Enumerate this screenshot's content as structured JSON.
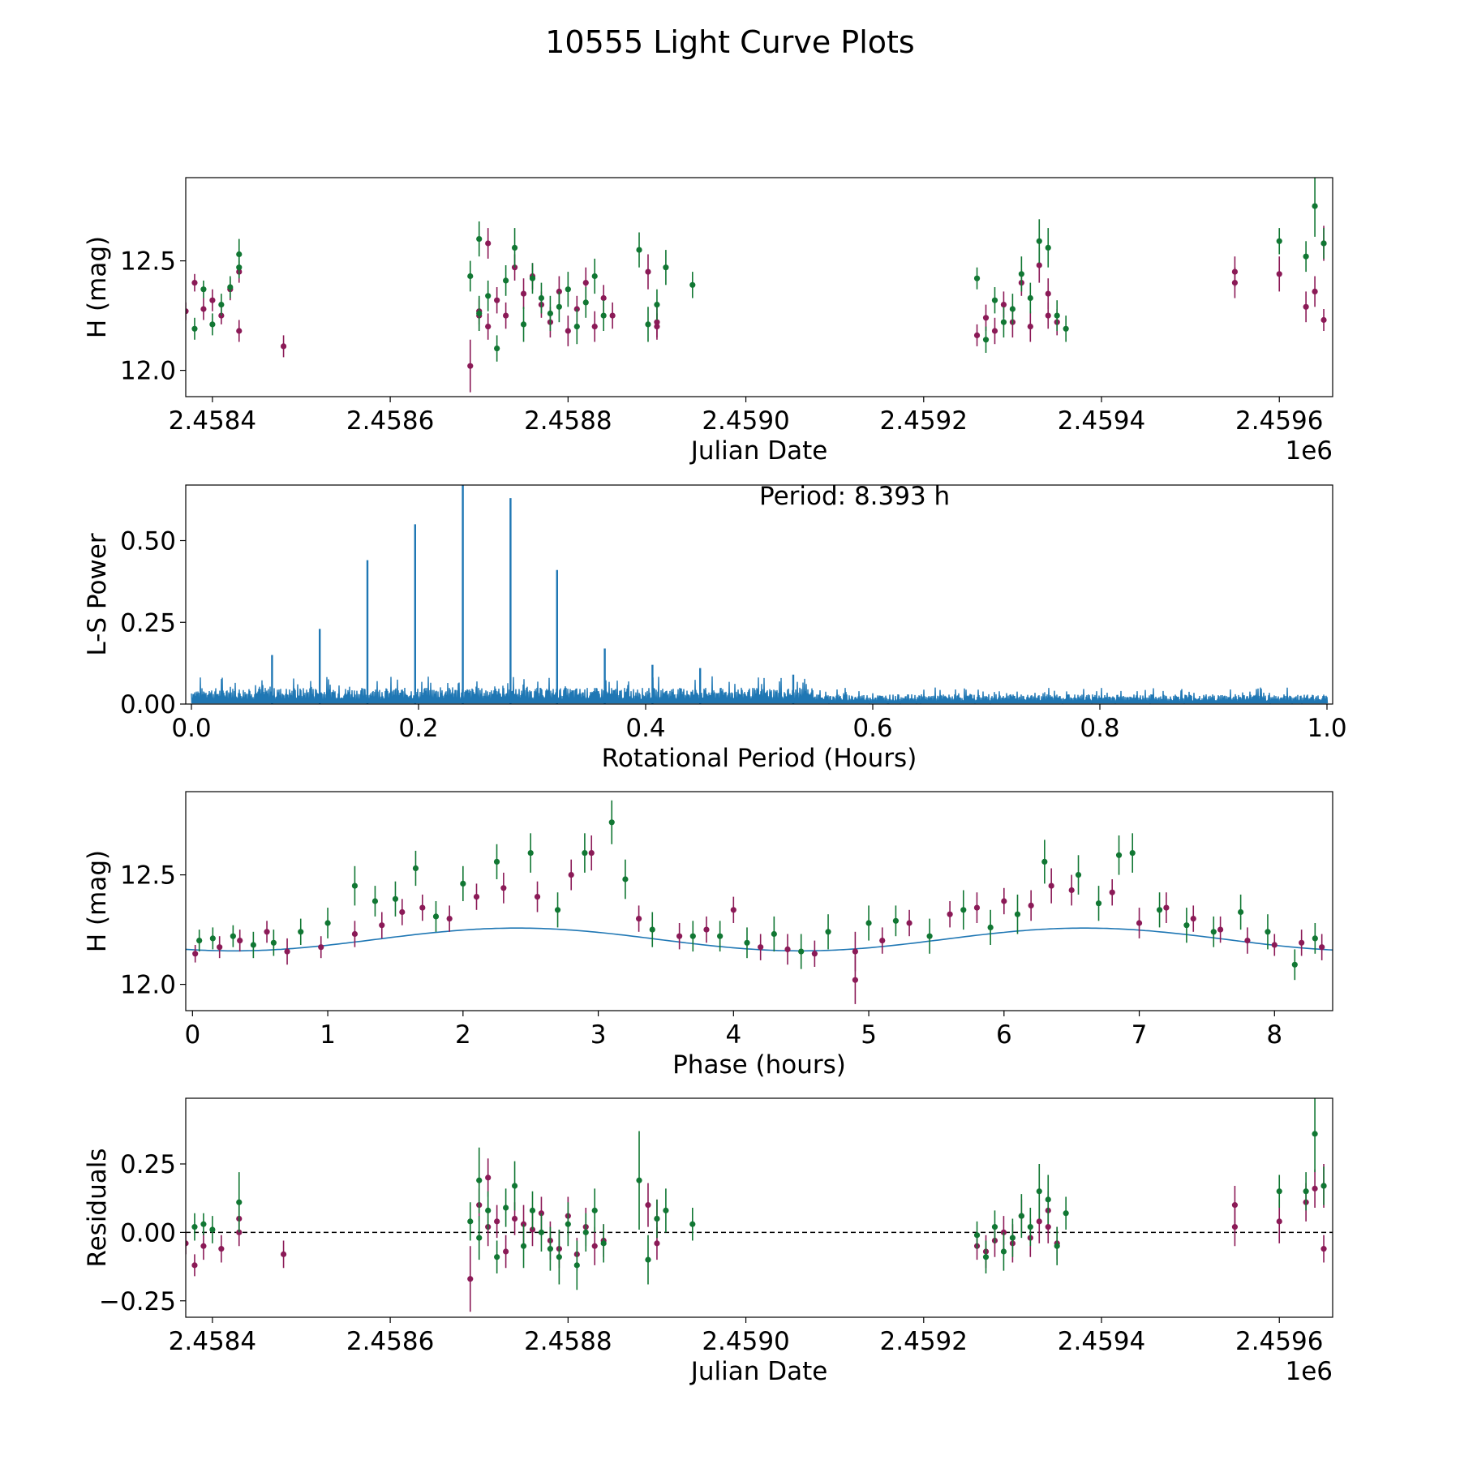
{
  "figure": {
    "title": "10555 Light Curve Plots"
  },
  "colors": {
    "band_a": "#8b1a57",
    "band_b": "#117733",
    "line": "#1f77b4",
    "axis": "#000000"
  },
  "chart_data": [
    {
      "id": "p1",
      "type": "scatter",
      "title": "",
      "xlabel": "Julian Date",
      "ylabel": "H (mag)",
      "x_offset_label": "1e6",
      "xlim": [
        2.45837,
        2.45966
      ],
      "ylim": [
        11.88,
        12.88
      ],
      "xticks": [
        2.4584,
        2.4586,
        2.4588,
        2.459,
        2.4592,
        2.4594,
        2.4596
      ],
      "xticklabels": [
        "2.4584",
        "2.4586",
        "2.4588",
        "2.4590",
        "2.4592",
        "2.4594",
        "2.4596"
      ],
      "yticks": [
        12.0,
        12.5
      ],
      "yticklabels": [
        "12.0",
        "12.5"
      ],
      "series": [
        {
          "name": "band_a",
          "color": "#8b1a57",
          "x": [
            2.45837,
            2.45838,
            2.45839,
            2.4584,
            2.45841,
            2.45842,
            2.45843,
            2.45843,
            2.45848,
            2.45869,
            2.4587,
            2.4587,
            2.45871,
            2.45871,
            2.45872,
            2.45873,
            2.45874,
            2.45875,
            2.45876,
            2.45877,
            2.45878,
            2.45879,
            2.4588,
            2.45881,
            2.45882,
            2.45883,
            2.45884,
            2.45885,
            2.45889,
            2.4589,
            2.4589,
            2.45926,
            2.45927,
            2.45928,
            2.45929,
            2.4593,
            2.45931,
            2.45932,
            2.45933,
            2.45934,
            2.45934,
            2.45935,
            2.45955,
            2.45955,
            2.4596,
            2.45963,
            2.45964,
            2.45965,
            2.45965
          ],
          "y": [
            12.27,
            12.4,
            12.28,
            12.32,
            12.25,
            12.37,
            12.45,
            12.18,
            12.11,
            12.02,
            12.27,
            12.25,
            12.58,
            12.2,
            12.32,
            12.25,
            12.47,
            12.35,
            12.43,
            12.3,
            12.22,
            12.36,
            12.18,
            12.28,
            12.4,
            12.2,
            12.33,
            12.25,
            12.45,
            12.22,
            12.2,
            12.16,
            12.24,
            12.18,
            12.3,
            12.22,
            12.4,
            12.2,
            12.48,
            12.35,
            12.25,
            12.22,
            12.45,
            12.4,
            12.44,
            12.29,
            12.36,
            12.58,
            12.23
          ],
          "err": [
            0.04,
            0.04,
            0.05,
            0.05,
            0.04,
            0.05,
            0.05,
            0.05,
            0.05,
            0.12,
            0.06,
            0.07,
            0.07,
            0.06,
            0.06,
            0.06,
            0.06,
            0.07,
            0.06,
            0.06,
            0.07,
            0.07,
            0.07,
            0.06,
            0.07,
            0.07,
            0.06,
            0.06,
            0.08,
            0.07,
            0.06,
            0.05,
            0.06,
            0.06,
            0.06,
            0.07,
            0.06,
            0.07,
            0.08,
            0.07,
            0.06,
            0.06,
            0.07,
            0.07,
            0.08,
            0.07,
            0.07,
            0.08,
            0.05
          ]
        },
        {
          "name": "band_b",
          "color": "#117733",
          "x": [
            2.45838,
            2.45839,
            2.4584,
            2.45841,
            2.45842,
            2.45843,
            2.45843,
            2.45869,
            2.4587,
            2.4587,
            2.45871,
            2.45872,
            2.45873,
            2.45874,
            2.45875,
            2.45876,
            2.45877,
            2.45878,
            2.45879,
            2.4588,
            2.45881,
            2.45882,
            2.45883,
            2.45884,
            2.45888,
            2.45889,
            2.4589,
            2.45891,
            2.45894,
            2.45926,
            2.45927,
            2.45928,
            2.45929,
            2.4593,
            2.45931,
            2.45932,
            2.45933,
            2.45934,
            2.45935,
            2.45936,
            2.4596,
            2.45963,
            2.45964,
            2.45965
          ],
          "y": [
            12.19,
            12.37,
            12.21,
            12.3,
            12.38,
            12.53,
            12.47,
            12.43,
            12.26,
            12.6,
            12.34,
            12.1,
            12.41,
            12.56,
            12.21,
            12.42,
            12.33,
            12.26,
            12.29,
            12.37,
            12.2,
            12.31,
            12.43,
            12.25,
            12.55,
            12.21,
            12.3,
            12.47,
            12.39,
            12.42,
            12.14,
            12.32,
            12.22,
            12.28,
            12.44,
            12.33,
            12.59,
            12.56,
            12.25,
            12.19,
            12.59,
            12.52,
            12.75,
            12.58
          ],
          "err": [
            0.05,
            0.04,
            0.05,
            0.05,
            0.05,
            0.07,
            0.05,
            0.07,
            0.08,
            0.08,
            0.07,
            0.06,
            0.07,
            0.09,
            0.08,
            0.07,
            0.07,
            0.08,
            0.07,
            0.08,
            0.08,
            0.07,
            0.08,
            0.07,
            0.08,
            0.08,
            0.07,
            0.08,
            0.06,
            0.05,
            0.06,
            0.06,
            0.07,
            0.07,
            0.08,
            0.07,
            0.1,
            0.09,
            0.07,
            0.06,
            0.06,
            0.07,
            0.14,
            0.07
          ]
        }
      ]
    },
    {
      "id": "p2",
      "type": "line",
      "title": "",
      "annotation": "Period: 8.393 h",
      "xlabel": "Rotational Period (Hours)",
      "ylabel": "L-S Power",
      "xlim": [
        -0.005,
        1.005
      ],
      "ylim": [
        0,
        0.67
      ],
      "xticks": [
        0.0,
        0.2,
        0.4,
        0.6,
        0.8,
        1.0
      ],
      "xticklabels": [
        "0.0",
        "0.2",
        "0.4",
        "0.6",
        "0.8",
        "1.0"
      ],
      "yticks": [
        0.0,
        0.25,
        0.5
      ],
      "yticklabels": [
        "0.00",
        "0.25",
        "0.50"
      ],
      "peaks_x": [
        0.071,
        0.113,
        0.155,
        0.197,
        0.239,
        0.281,
        0.322,
        0.364,
        0.406,
        0.448,
        0.53
      ],
      "peaks_y": [
        0.15,
        0.23,
        0.44,
        0.55,
        0.67,
        0.63,
        0.41,
        0.17,
        0.12,
        0.11,
        0.09
      ],
      "noise_level": 0.05,
      "noise_decay_x": 0.55,
      "noise_level_far": 0.03,
      "color": "#1f77b4"
    },
    {
      "id": "p3",
      "type": "scatter",
      "title": "",
      "xlabel": "Phase (hours)",
      "ylabel": "H (mag)",
      "xlim": [
        -0.05,
        8.43
      ],
      "ylim": [
        11.88,
        12.88
      ],
      "xticks": [
        0,
        1,
        2,
        3,
        4,
        5,
        6,
        7,
        8
      ],
      "xticklabels": [
        "0",
        "1",
        "2",
        "3",
        "4",
        "5",
        "6",
        "7",
        "8"
      ],
      "yticks": [
        12.0,
        12.5
      ],
      "yticklabels": [
        "12.0",
        "12.5"
      ],
      "fit": {
        "name": "model",
        "color": "#1f77b4",
        "mean": 12.205,
        "amp": 0.052,
        "period_h": 8.393,
        "phase0": 2.4
      },
      "series": [
        {
          "name": "band_a",
          "color": "#8b1a57",
          "x": [
            0.02,
            0.2,
            0.35,
            0.55,
            0.7,
            0.95,
            1.2,
            1.4,
            1.55,
            1.7,
            1.9,
            2.1,
            2.3,
            2.55,
            2.8,
            2.95,
            3.3,
            3.6,
            3.8,
            4.0,
            4.2,
            4.4,
            4.6,
            4.9,
            5.1,
            5.3,
            5.6,
            5.8,
            6.0,
            6.2,
            6.35,
            6.5,
            6.8,
            7.0,
            7.2,
            7.4,
            7.6,
            7.8,
            8.0,
            8.2,
            8.35
          ],
          "y": [
            12.14,
            12.17,
            12.2,
            12.24,
            12.15,
            12.17,
            12.23,
            12.27,
            12.33,
            12.35,
            12.3,
            12.4,
            12.44,
            12.4,
            12.5,
            12.6,
            12.3,
            12.22,
            12.25,
            12.34,
            12.17,
            12.16,
            12.14,
            12.15,
            12.2,
            12.28,
            12.32,
            12.35,
            12.38,
            12.36,
            12.45,
            12.43,
            12.42,
            12.28,
            12.35,
            12.3,
            12.25,
            12.2,
            12.18,
            12.19,
            12.17
          ],
          "err": [
            0.04,
            0.05,
            0.05,
            0.05,
            0.06,
            0.05,
            0.06,
            0.06,
            0.06,
            0.06,
            0.06,
            0.06,
            0.07,
            0.07,
            0.07,
            0.08,
            0.06,
            0.06,
            0.06,
            0.06,
            0.06,
            0.07,
            0.06,
            0.09,
            0.06,
            0.06,
            0.06,
            0.07,
            0.06,
            0.07,
            0.08,
            0.07,
            0.06,
            0.07,
            0.07,
            0.06,
            0.06,
            0.06,
            0.05,
            0.06,
            0.06
          ],
          "extra_x": [
            4.9
          ],
          "extra_y": [
            12.02
          ],
          "extra_err": [
            0.11
          ]
        },
        {
          "name": "band_b",
          "color": "#117733",
          "x": [
            0.05,
            0.15,
            0.3,
            0.45,
            0.6,
            0.8,
            1.0,
            1.2,
            1.35,
            1.5,
            1.65,
            1.8,
            2.0,
            2.25,
            2.5,
            2.7,
            2.9,
            3.1,
            3.2,
            3.4,
            3.7,
            3.9,
            4.1,
            4.3,
            4.5,
            4.7,
            5.0,
            5.2,
            5.45,
            5.7,
            5.9,
            6.1,
            6.3,
            6.55,
            6.7,
            6.85,
            6.95,
            7.15,
            7.35,
            7.55,
            7.75,
            7.95,
            8.15,
            8.3
          ],
          "y": [
            12.2,
            12.21,
            12.22,
            12.18,
            12.19,
            12.24,
            12.28,
            12.45,
            12.38,
            12.39,
            12.53,
            12.31,
            12.46,
            12.56,
            12.6,
            12.34,
            12.6,
            12.74,
            12.48,
            12.25,
            12.22,
            12.22,
            12.19,
            12.23,
            12.15,
            12.24,
            12.28,
            12.29,
            12.22,
            12.34,
            12.26,
            12.32,
            12.56,
            12.5,
            12.37,
            12.59,
            12.6,
            12.34,
            12.27,
            12.24,
            12.33,
            12.24,
            12.09,
            12.21
          ],
          "err": [
            0.05,
            0.05,
            0.05,
            0.06,
            0.06,
            0.06,
            0.07,
            0.09,
            0.07,
            0.08,
            0.08,
            0.07,
            0.08,
            0.08,
            0.09,
            0.08,
            0.09,
            0.1,
            0.09,
            0.08,
            0.07,
            0.07,
            0.07,
            0.08,
            0.08,
            0.08,
            0.08,
            0.07,
            0.08,
            0.09,
            0.08,
            0.09,
            0.1,
            0.09,
            0.08,
            0.09,
            0.09,
            0.08,
            0.08,
            0.07,
            0.08,
            0.08,
            0.07,
            0.07
          ]
        }
      ]
    },
    {
      "id": "p4",
      "type": "scatter",
      "title": "",
      "xlabel": "Julian Date",
      "ylabel": "Residuals",
      "x_offset_label": "1e6",
      "xlim": [
        2.45837,
        2.45966
      ],
      "ylim": [
        -0.31,
        0.49
      ],
      "xticks": [
        2.4584,
        2.4586,
        2.4588,
        2.459,
        2.4592,
        2.4594,
        2.4596
      ],
      "xticklabels": [
        "2.4584",
        "2.4586",
        "2.4588",
        "2.4590",
        "2.4592",
        "2.4594",
        "2.4596"
      ],
      "yticks": [
        -0.25,
        0.0,
        0.25
      ],
      "yticklabels": [
        "−0.25",
        "0.00",
        "0.25"
      ],
      "zero_line": true,
      "series": [
        {
          "name": "band_a",
          "color": "#8b1a57",
          "x": [
            2.45837,
            2.45838,
            2.45839,
            2.45841,
            2.45843,
            2.45843,
            2.45848,
            2.45869,
            2.4587,
            2.45871,
            2.45871,
            2.45872,
            2.45873,
            2.45874,
            2.45875,
            2.45876,
            2.45877,
            2.45878,
            2.45879,
            2.4588,
            2.45881,
            2.45882,
            2.45883,
            2.45884,
            2.45889,
            2.4589,
            2.4589,
            2.45926,
            2.45927,
            2.45928,
            2.45929,
            2.4593,
            2.45931,
            2.45932,
            2.45933,
            2.45934,
            2.45934,
            2.45935,
            2.45955,
            2.45955,
            2.4596,
            2.45963,
            2.45964,
            2.45965,
            2.45965
          ],
          "y": [
            -0.04,
            -0.12,
            -0.05,
            -0.06,
            0.05,
            0.0,
            -0.08,
            -0.17,
            0.1,
            0.02,
            0.2,
            0.04,
            -0.07,
            0.05,
            0.03,
            0.01,
            0.07,
            -0.03,
            -0.06,
            0.06,
            -0.08,
            0.02,
            -0.05,
            -0.03,
            0.1,
            0.05,
            -0.04,
            -0.05,
            -0.07,
            -0.03,
            0.0,
            -0.04,
            0.06,
            -0.02,
            0.04,
            0.08,
            0.02,
            -0.04,
            0.1,
            0.02,
            0.04,
            0.11,
            0.16,
            0.17,
            -0.06
          ],
          "err": [
            0.04,
            0.04,
            0.05,
            0.05,
            0.05,
            0.05,
            0.05,
            0.12,
            0.06,
            0.07,
            0.07,
            0.06,
            0.06,
            0.06,
            0.07,
            0.06,
            0.06,
            0.07,
            0.07,
            0.07,
            0.06,
            0.07,
            0.07,
            0.06,
            0.08,
            0.07,
            0.06,
            0.05,
            0.06,
            0.06,
            0.06,
            0.07,
            0.06,
            0.07,
            0.08,
            0.07,
            0.06,
            0.06,
            0.07,
            0.07,
            0.08,
            0.07,
            0.07,
            0.08,
            0.05
          ]
        },
        {
          "name": "band_b",
          "color": "#117733",
          "x": [
            2.45838,
            2.45839,
            2.4584,
            2.45843,
            2.45869,
            2.4587,
            2.4587,
            2.45871,
            2.45872,
            2.45873,
            2.45874,
            2.45875,
            2.45876,
            2.45877,
            2.45878,
            2.45879,
            2.4588,
            2.45881,
            2.45882,
            2.45883,
            2.45884,
            2.45888,
            2.45889,
            2.4589,
            2.45891,
            2.45894,
            2.45926,
            2.45927,
            2.45928,
            2.45929,
            2.4593,
            2.45931,
            2.45932,
            2.45933,
            2.45934,
            2.45935,
            2.45936,
            2.4596,
            2.45963,
            2.45964,
            2.45965
          ],
          "y": [
            0.02,
            0.03,
            0.01,
            0.11,
            0.04,
            -0.02,
            0.19,
            0.08,
            -0.09,
            0.09,
            0.17,
            -0.05,
            0.08,
            0.0,
            -0.06,
            -0.09,
            0.03,
            -0.12,
            0.0,
            0.08,
            -0.04,
            0.19,
            -0.1,
            0.05,
            0.08,
            0.03,
            -0.01,
            -0.09,
            0.02,
            -0.07,
            -0.02,
            0.06,
            0.02,
            0.15,
            0.12,
            -0.05,
            0.07,
            0.15,
            0.15,
            0.36,
            0.17
          ],
          "err": [
            0.05,
            0.04,
            0.05,
            0.11,
            0.07,
            0.08,
            0.12,
            0.07,
            0.06,
            0.07,
            0.09,
            0.08,
            0.07,
            0.07,
            0.08,
            0.1,
            0.08,
            0.09,
            0.07,
            0.08,
            0.07,
            0.18,
            0.09,
            0.07,
            0.08,
            0.06,
            0.05,
            0.06,
            0.06,
            0.07,
            0.07,
            0.08,
            0.07,
            0.1,
            0.09,
            0.07,
            0.06,
            0.06,
            0.07,
            0.14,
            0.07
          ]
        }
      ]
    }
  ]
}
